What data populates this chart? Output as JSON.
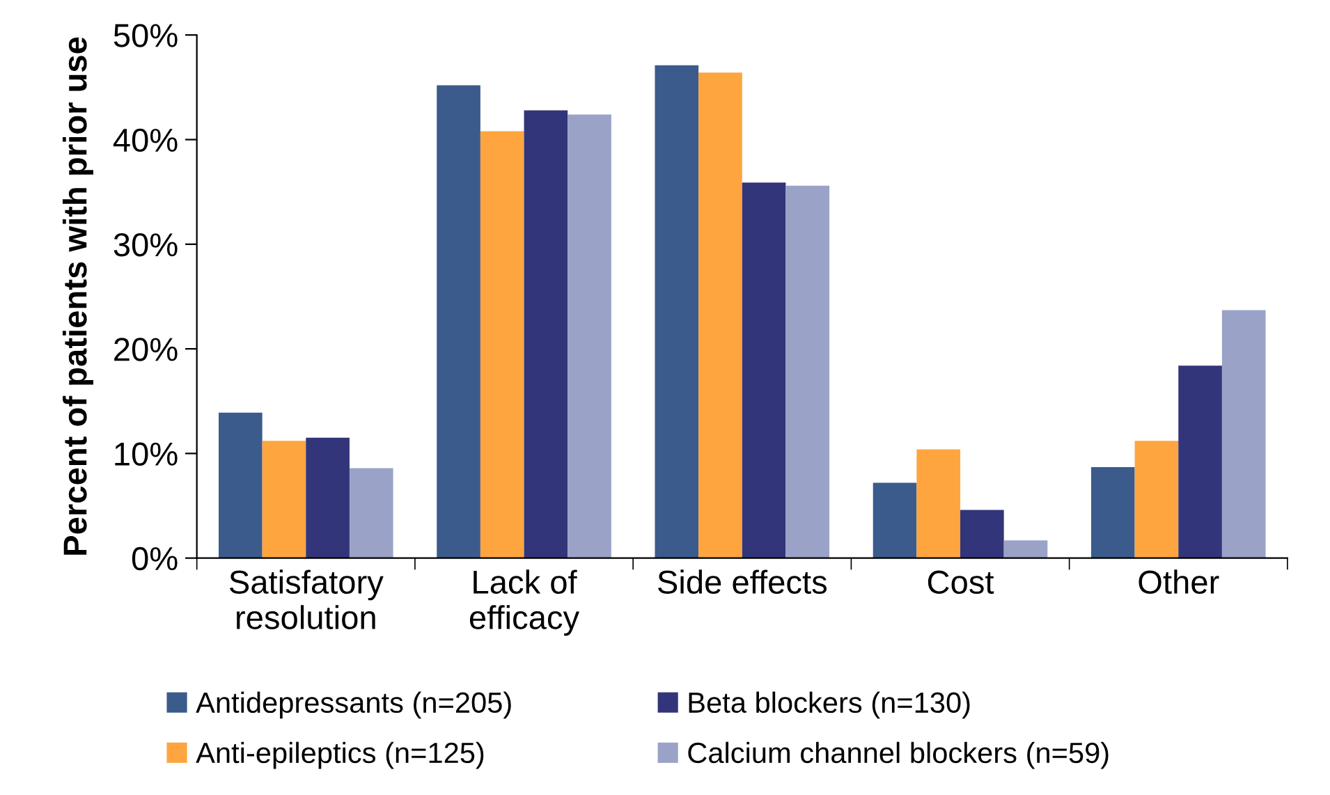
{
  "chart_data": {
    "type": "bar",
    "ylabel": "Percent of patients with prior use",
    "categories": [
      "Satisfatory\nresolution",
      "Lack of\nefficacy",
      "Side effects",
      "Cost",
      "Other"
    ],
    "series": [
      {
        "name": "Antidepressants (n=205)",
        "color": "#3b5b8c",
        "values": [
          13.9,
          45.2,
          47.1,
          7.2,
          8.7
        ]
      },
      {
        "name": "Anti-epileptics (n=125)",
        "color": "#ffa53f",
        "values": [
          11.2,
          40.8,
          46.4,
          10.4,
          11.2
        ]
      },
      {
        "name": "Beta blockers (n=130)",
        "color": "#33357a",
        "values": [
          11.5,
          42.8,
          35.9,
          4.6,
          18.4
        ]
      },
      {
        "name": "Calcium channel blockers (n=59)",
        "color": "#9aa3c7",
        "values": [
          8.6,
          42.4,
          35.6,
          1.7,
          23.7
        ]
      }
    ],
    "ylim": [
      0,
      50
    ],
    "yticks": [
      {
        "value": 0,
        "label": "0%"
      },
      {
        "value": 10,
        "label": "10%"
      },
      {
        "value": 20,
        "label": "20%"
      },
      {
        "value": 30,
        "label": "30%"
      },
      {
        "value": 40,
        "label": "40%"
      },
      {
        "value": 50,
        "label": "50%"
      }
    ],
    "grid": false,
    "legend": "bottom"
  }
}
